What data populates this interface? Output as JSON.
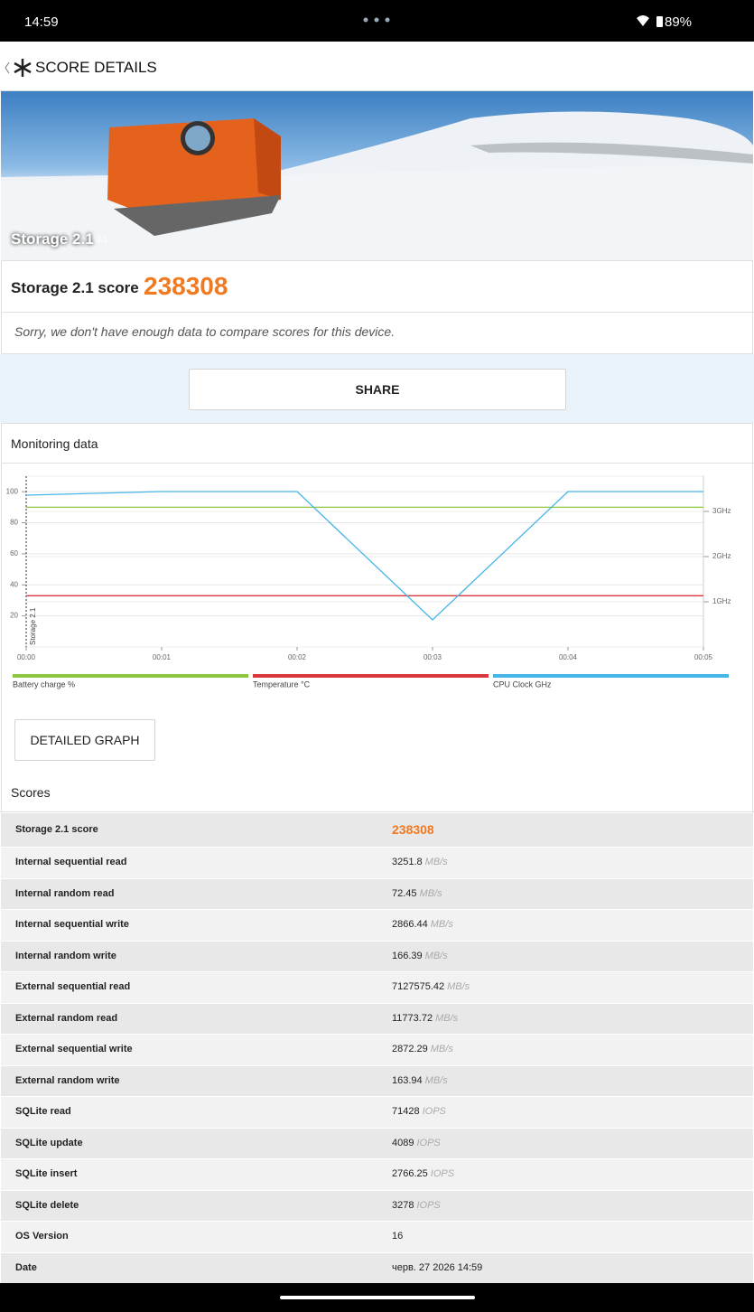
{
  "status_bar": {
    "time": "14:59",
    "battery": "89%"
  },
  "header": {
    "title": "SCORE DETAILS"
  },
  "hero": {
    "label": "Storage 2.1",
    "version": "2.1"
  },
  "score": {
    "label": "Storage 2.1 score",
    "value": 238308
  },
  "notice": "Sorry, we don't have enough data to compare scores for this device.",
  "share": "SHARE",
  "monitoring": {
    "title": "Monitoring data"
  },
  "chart_data": {
    "type": "line",
    "annotation": "Storage 2.1",
    "x": [
      0,
      1,
      2,
      3,
      4,
      5
    ],
    "xlim": [
      0,
      5
    ],
    "xticks": [
      {
        "value": 0,
        "label": "00:00"
      },
      {
        "value": 1,
        "label": "00:01"
      },
      {
        "value": 2,
        "label": "00:02"
      },
      {
        "value": 3,
        "label": "00:03"
      },
      {
        "value": 4,
        "label": "00:04"
      },
      {
        "value": 5,
        "label": "00:05"
      }
    ],
    "ylim": [
      0,
      110
    ],
    "yticks": [
      20,
      40,
      60,
      80,
      100
    ],
    "y2lim": [
      0,
      3.78
    ],
    "y2ticks": [
      {
        "value": 1,
        "label": "1GHz"
      },
      {
        "value": 2,
        "label": "2GHz"
      },
      {
        "value": 3,
        "label": "3GHz"
      }
    ],
    "grid": true,
    "series": [
      {
        "name": "Battery charge %",
        "color": "#8cc63f",
        "values": [
          90,
          90,
          90,
          90,
          90,
          90
        ]
      },
      {
        "name": "Temperature °C",
        "color": "#d9363e",
        "values": [
          33,
          33,
          33,
          33,
          33,
          33
        ]
      },
      {
        "name": "CPU Clock GHz",
        "color": "#45b6e6",
        "axis": "y2",
        "values": [
          3.36,
          3.44,
          3.44,
          0.6,
          3.44,
          3.44
        ]
      }
    ]
  },
  "detailed_graph": "DETAILED GRAPH",
  "scores": {
    "title": "Scores",
    "rows": [
      {
        "label": "Storage 2.1 score",
        "value": 238308
      },
      {
        "label": "Internal sequential read",
        "value": 3251.8,
        "unit": "MB/s"
      },
      {
        "label": "Internal random read",
        "value": 72.45,
        "unit": "MB/s"
      },
      {
        "label": "Internal sequential write",
        "value": 2866.44,
        "unit": "MB/s"
      },
      {
        "label": "Internal random write",
        "value": 166.39,
        "unit": "MB/s"
      },
      {
        "label": "External sequential read",
        "value": 7127575.42,
        "unit": "MB/s"
      },
      {
        "label": "External random read",
        "value": 11773.72,
        "unit": "MB/s"
      },
      {
        "label": "External sequential write",
        "value": 2872.29,
        "unit": "MB/s"
      },
      {
        "label": "External random write",
        "value": 163.94,
        "unit": "MB/s"
      },
      {
        "label": "SQLite read",
        "value": 71428,
        "unit": "IOPS"
      },
      {
        "label": "SQLite update",
        "value": 4089,
        "unit": "IOPS"
      },
      {
        "label": "SQLite insert",
        "value": 2766.25,
        "unit": "IOPS"
      },
      {
        "label": "SQLite delete",
        "value": 3278,
        "unit": "IOPS"
      },
      {
        "label": "OS Version",
        "value": 16
      },
      {
        "label": "Date",
        "value": "черв. 27 2026 14:59"
      }
    ]
  }
}
